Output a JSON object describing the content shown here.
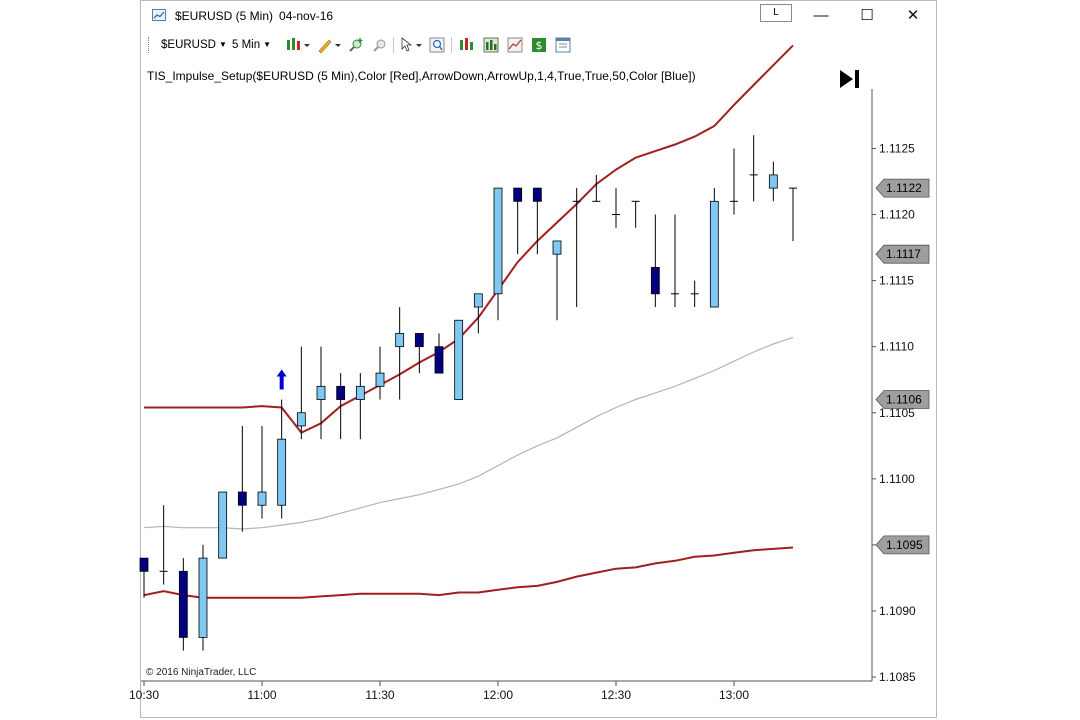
{
  "window": {
    "title_symbol": "$EURUSD (5 Min)",
    "title_date": "04-nov-16",
    "link_button": "L",
    "minimize": "—",
    "maximize": "☐",
    "close": "✕"
  },
  "toolbar": {
    "instrument": "$EURUSD",
    "interval": "5 Min",
    "icons": [
      "bar-type-icon",
      "drawing-pencil-icon",
      "zoom-in-icon",
      "zoom-out-icon",
      "cursor-icon",
      "magnifier-icon",
      "strategies-icon",
      "indicators-icon",
      "templates-icon",
      "dollar-icon",
      "properties-icon"
    ]
  },
  "indicator_label": "TIS_Impulse_Setup($EURUSD (5 Min),Color [Red],ArrowDown,ArrowUp,1,4,True,True,50,Color [Blue])",
  "copyright": "© 2016 NinjaTrader, LLC",
  "colors": {
    "up_candle": "#7ec8f2",
    "down_candle": "#000080",
    "envelope": "#a01f1f",
    "midline": "#b4b4b4",
    "arrow": "#0000cc",
    "price_marker": "#9e9e9e"
  },
  "chart_data": {
    "type": "candlestick",
    "interval_minutes": 5,
    "x_tick_labels": [
      "10:30",
      "11:00",
      "11:30",
      "12:00",
      "12:30",
      "13:00"
    ],
    "y_tick_labels": [
      "1.1125",
      "1.1120",
      "1.1115",
      "1.1110",
      "1.1105",
      "1.1100",
      "1.1095",
      "1.1090",
      "1.1085"
    ],
    "ylim": [
      1.10847,
      1.11295
    ],
    "price_markers": [
      "1.1122",
      "1.1117",
      "1.1106",
      "1.1095"
    ],
    "times": [
      "10:30",
      "10:35",
      "10:40",
      "10:45",
      "10:50",
      "10:55",
      "11:00",
      "11:05",
      "11:10",
      "11:15",
      "11:20",
      "11:25",
      "11:30",
      "11:35",
      "11:40",
      "11:45",
      "11:50",
      "11:55",
      "12:00",
      "12:05",
      "12:10",
      "12:15",
      "12:20",
      "12:25",
      "12:30",
      "12:35",
      "12:40",
      "12:45",
      "12:50",
      "12:55",
      "13:00",
      "13:05",
      "13:10",
      "13:15"
    ],
    "open": [
      1.1094,
      1.1093,
      1.1093,
      1.1088,
      1.1094,
      1.1099,
      1.1098,
      1.1098,
      1.1104,
      1.1106,
      1.1107,
      1.1106,
      1.1107,
      1.111,
      1.1111,
      1.111,
      1.1106,
      1.1113,
      1.1114,
      1.1122,
      1.1122,
      1.1117,
      1.1121,
      1.1121,
      1.112,
      1.1121,
      1.1116,
      1.1114,
      1.1114,
      1.1113,
      1.1121,
      1.1123,
      1.1122,
      1.1122
    ],
    "high": [
      1.1094,
      1.1098,
      1.1094,
      1.1095,
      1.1099,
      1.1104,
      1.1104,
      1.1106,
      1.111,
      1.111,
      1.1108,
      1.1108,
      1.111,
      1.1113,
      1.1111,
      1.1111,
      1.1112,
      1.1114,
      1.1122,
      1.1122,
      1.1122,
      1.1118,
      1.1122,
      1.1123,
      1.1122,
      1.1121,
      1.112,
      1.112,
      1.1115,
      1.1122,
      1.1125,
      1.1126,
      1.1124,
      1.1122
    ],
    "low": [
      1.1091,
      1.1092,
      1.1087,
      1.1087,
      1.1094,
      1.1096,
      1.1097,
      1.1097,
      1.1103,
      1.1103,
      1.1103,
      1.1103,
      1.1106,
      1.1106,
      1.1108,
      1.1108,
      1.1106,
      1.1111,
      1.1112,
      1.1117,
      1.1117,
      1.1112,
      1.1113,
      1.1121,
      1.1119,
      1.1119,
      1.1113,
      1.1113,
      1.1113,
      1.1113,
      1.112,
      1.1121,
      1.1121,
      1.1118
    ],
    "close": [
      1.1093,
      1.1093,
      1.1088,
      1.1094,
      1.1099,
      1.1098,
      1.1099,
      1.1103,
      1.1105,
      1.1107,
      1.1106,
      1.1107,
      1.1108,
      1.1111,
      1.111,
      1.1108,
      1.1112,
      1.1114,
      1.1122,
      1.1121,
      1.1121,
      1.1118,
      1.1121,
      1.1121,
      1.112,
      1.1121,
      1.1114,
      1.1114,
      1.1114,
      1.1121,
      1.1121,
      1.1123,
      1.1123,
      1.1122
    ],
    "arrow_up_at_index": 7,
    "upper_band": [
      1.11054,
      1.11054,
      1.11054,
      1.11054,
      1.11054,
      1.11054,
      1.11055,
      1.11054,
      1.11035,
      1.11042,
      1.11055,
      1.11063,
      1.11071,
      1.11079,
      1.11088,
      1.11096,
      1.11106,
      1.11122,
      1.11143,
      1.11164,
      1.1118,
      1.11194,
      1.11208,
      1.11223,
      1.11234,
      1.11243,
      1.11248,
      1.11253,
      1.11259,
      1.11267,
      1.11283,
      1.11298,
      1.11313,
      1.11328
    ],
    "midline": [
      1.10963,
      1.10964,
      1.10963,
      1.10963,
      1.10963,
      1.10962,
      1.10963,
      1.10965,
      1.10967,
      1.1097,
      1.10974,
      1.10978,
      1.10982,
      1.10985,
      1.10988,
      1.10992,
      1.10996,
      1.11002,
      1.1101,
      1.11018,
      1.11025,
      1.11031,
      1.11039,
      1.11047,
      1.11054,
      1.1106,
      1.11065,
      1.1107,
      1.11076,
      1.11082,
      1.11089,
      1.11096,
      1.11102,
      1.11107
    ],
    "lower_band": [
      1.10912,
      1.10915,
      1.10912,
      1.1091,
      1.1091,
      1.1091,
      1.1091,
      1.1091,
      1.1091,
      1.10911,
      1.10912,
      1.10913,
      1.10913,
      1.10913,
      1.10913,
      1.10912,
      1.10914,
      1.10914,
      1.10916,
      1.10918,
      1.10919,
      1.10922,
      1.10926,
      1.10929,
      1.10932,
      1.10933,
      1.10936,
      1.10938,
      1.10941,
      1.10942,
      1.10944,
      1.10946,
      1.10947,
      1.10948
    ]
  }
}
